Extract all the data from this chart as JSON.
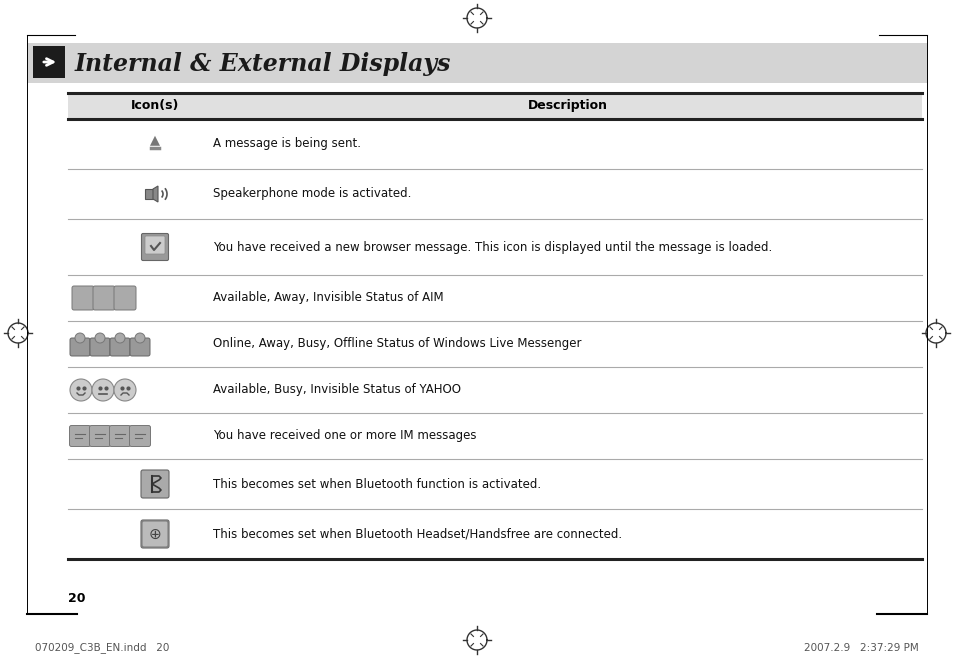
{
  "title": "Internal & External Displays",
  "bg_color": "#ffffff",
  "header_bg": "#d4d4d4",
  "page_number": "20",
  "footer_left": "070209_C3B_EN.indd   20",
  "footer_right": "2007.2.9   2:37:29 PM",
  "table_header_col1": "Icon(s)",
  "table_header_col2": "Description",
  "rows": [
    {
      "icon_type": "arrow_up",
      "description": "A message is being sent."
    },
    {
      "icon_type": "speakerphone",
      "description": "Speakerphone mode is activated."
    },
    {
      "icon_type": "browser_msg",
      "description": "You have received a new browser message. This icon is displayed until the message is loaded."
    },
    {
      "icon_type": "aim_status",
      "description": "Available, Away, Invisible Status of AIM"
    },
    {
      "icon_type": "wlm_status",
      "description": "Online, Away, Busy, Offline Status of Windows Live Messenger"
    },
    {
      "icon_type": "yahoo_status",
      "description": "Available, Busy, Invisible Status of YAHOO"
    },
    {
      "icon_type": "im_messages",
      "description": "You have received one or more IM messages"
    },
    {
      "icon_type": "bluetooth_active",
      "description": "This becomes set when Bluetooth function is activated."
    },
    {
      "icon_type": "bluetooth_headset",
      "description": "This becomes set when Bluetooth Headset/Handsfree are connected."
    }
  ],
  "fig_width": 9.54,
  "fig_height": 6.65,
  "dpi": 100
}
